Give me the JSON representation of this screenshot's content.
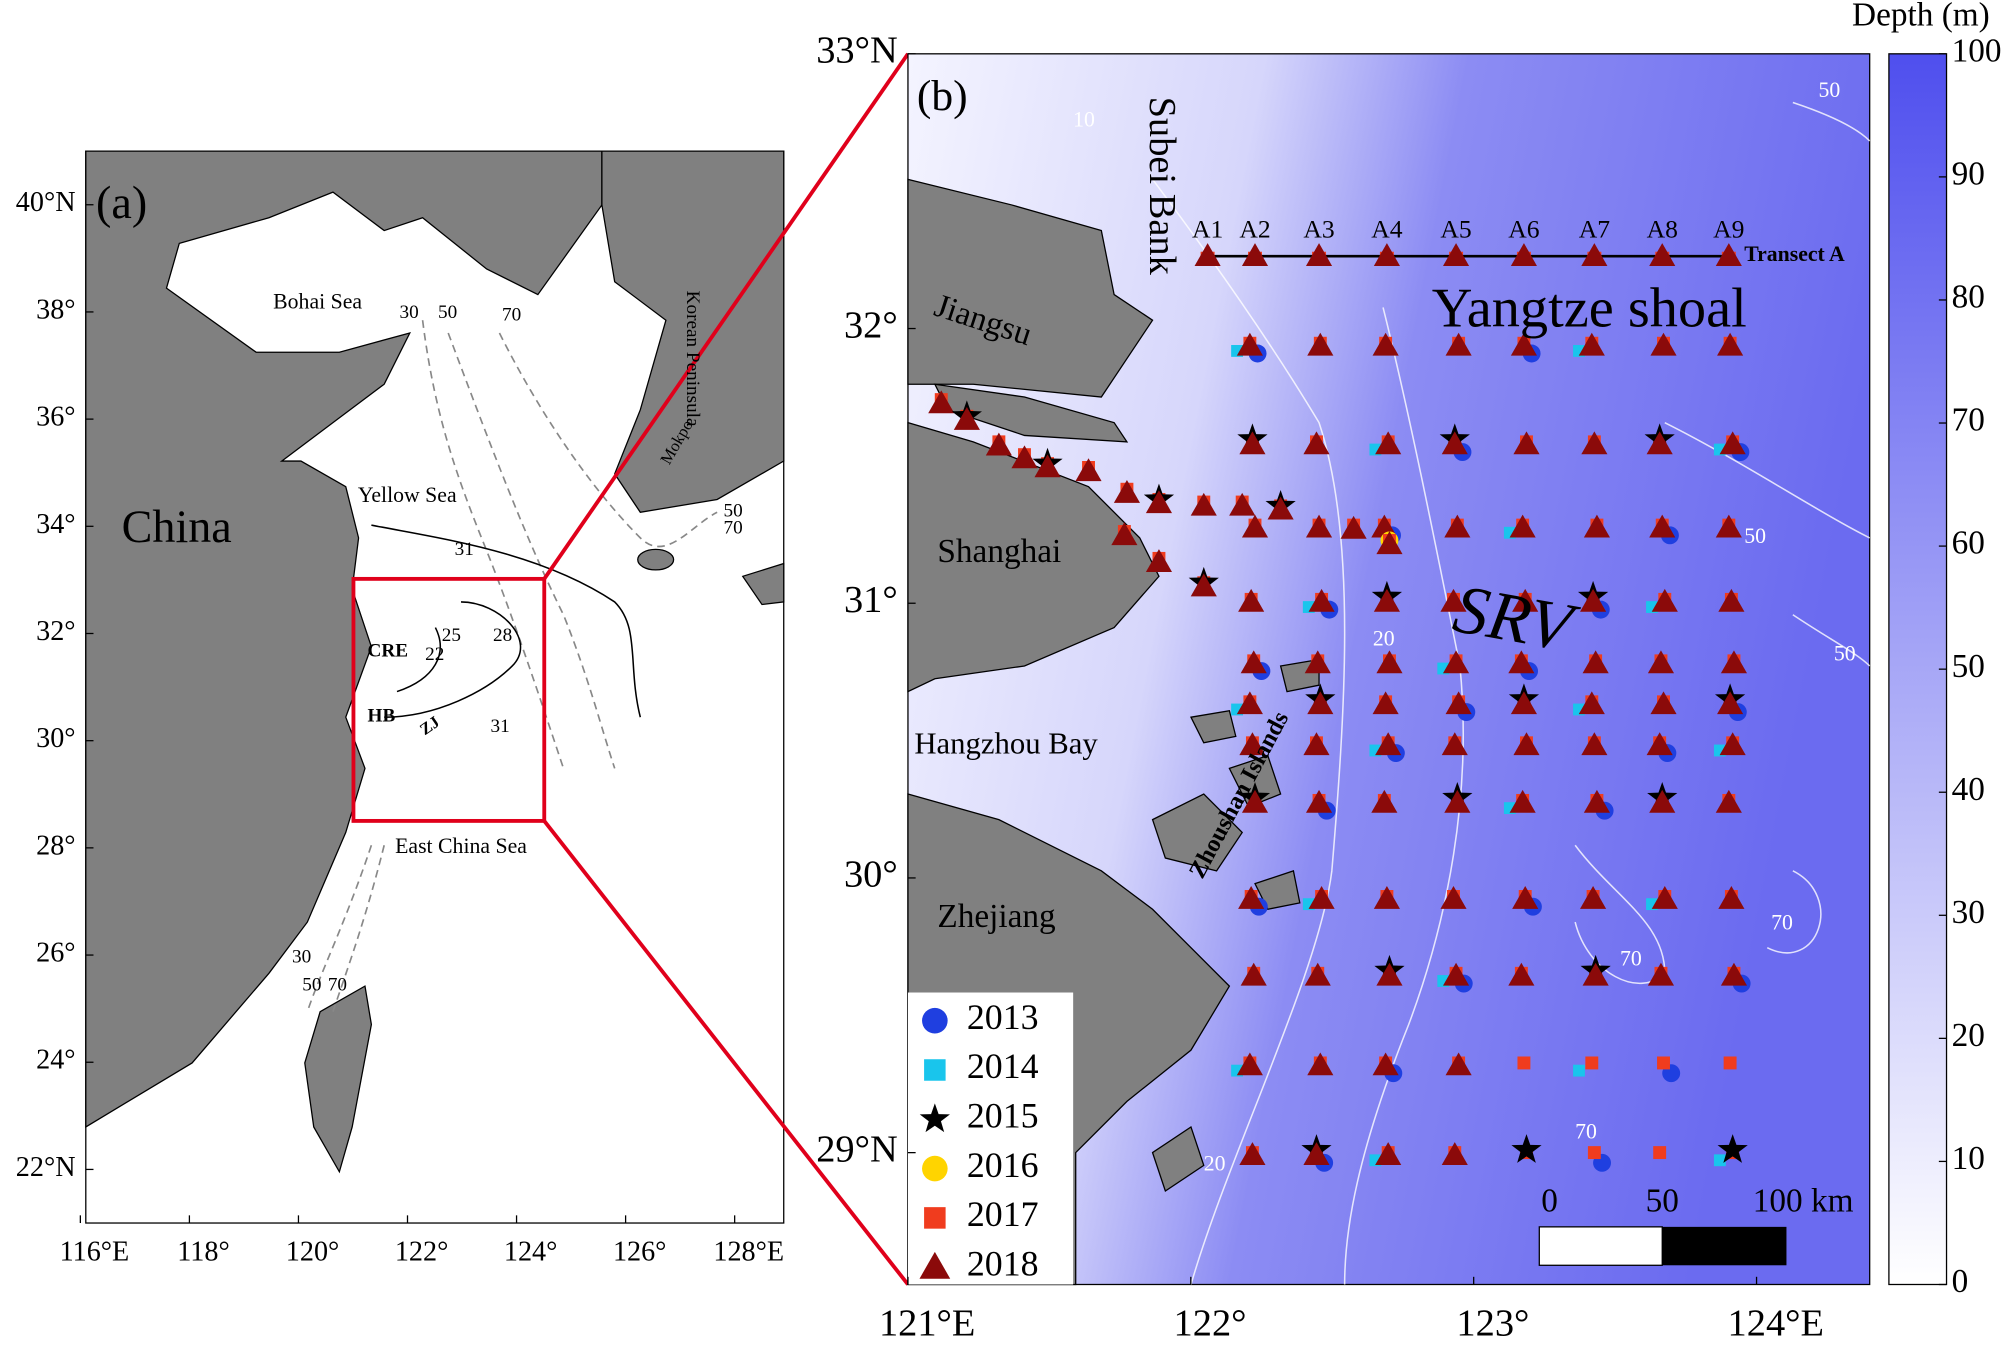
{
  "panel_a": {
    "label": "(a)",
    "xlim": [
      116.1,
      128.9
    ],
    "ylim": [
      21,
      41
    ],
    "xticks": [
      {
        "value": 116,
        "label": "116°E"
      },
      {
        "value": 118,
        "label": "118°"
      },
      {
        "value": 120,
        "label": "120°"
      },
      {
        "value": 122,
        "label": "122°"
      },
      {
        "value": 124,
        "label": "124°"
      },
      {
        "value": 126,
        "label": "126°"
      },
      {
        "value": 128,
        "label": "128°E"
      }
    ],
    "yticks": [
      {
        "value": 22,
        "label": "22°N"
      },
      {
        "value": 24,
        "label": "24°"
      },
      {
        "value": 26,
        "label": "26°"
      },
      {
        "value": 28,
        "label": "28°"
      },
      {
        "value": 30,
        "label": "30°"
      },
      {
        "value": 32,
        "label": "32°"
      },
      {
        "value": 34,
        "label": "34°"
      },
      {
        "value": 36,
        "label": "36°"
      },
      {
        "value": 38,
        "label": "38°"
      },
      {
        "value": 40,
        "label": "40°N"
      }
    ],
    "places": {
      "china": "China",
      "bohai": "Bohai Sea",
      "yellow": "Yellow Sea",
      "ecs": "East China Sea",
      "korea": "Korean Peninsula",
      "mokpo": "Mokpo",
      "cre": "CRE",
      "hb": "HB",
      "zj": "ZJ"
    },
    "contour_labels": [
      "30",
      "50",
      "70",
      "31",
      "25",
      "22",
      "28",
      "31",
      "50",
      "70",
      "30",
      "50",
      "70"
    ]
  },
  "panel_b": {
    "label": "(b)",
    "xlim": [
      121,
      124.4
    ],
    "ylim": [
      28.52,
      33
    ],
    "xticks": [
      {
        "value": 121,
        "label": "121°E"
      },
      {
        "value": 122,
        "label": "122°"
      },
      {
        "value": 123,
        "label": "123°"
      },
      {
        "value": 124,
        "label": "124°E"
      }
    ],
    "yticks": [
      {
        "value": 29,
        "label": "29°N"
      },
      {
        "value": 30,
        "label": "30°"
      },
      {
        "value": 31,
        "label": "31°"
      },
      {
        "value": 32,
        "label": "32°"
      },
      {
        "value": 33,
        "label": "33°N"
      }
    ],
    "places": {
      "subei": "Subei Bank",
      "jiangsu": "Jiangsu",
      "shanghai": "Shanghai",
      "hzbay": "Hangzhou Bay",
      "zhejiang": "Zhejiang",
      "zhoushan": "Zhoushan Islands",
      "shoal": "Yangtze shoal",
      "srv": "SRV",
      "transect": "Transect A"
    },
    "stations": [
      "A1",
      "A2",
      "A3",
      "A4",
      "A5",
      "A6",
      "A7",
      "A8",
      "A9"
    ],
    "contour_labels": [
      "50",
      "50",
      "50",
      "70",
      "70",
      "70",
      "20",
      "20",
      "10"
    ]
  },
  "colorbar": {
    "title": "Depth (m)",
    "ylim": [
      0,
      100
    ],
    "yticks": [
      0,
      10,
      20,
      30,
      40,
      50,
      60,
      70,
      80,
      90,
      100
    ],
    "colors": [
      "#ffffff",
      "#4f4fee"
    ]
  },
  "legend": {
    "series": [
      {
        "name": "2013",
        "color": "#1f3fe0",
        "marker": "circle"
      },
      {
        "name": "2014",
        "color": "#19c5ec",
        "marker": "square"
      },
      {
        "name": "2015",
        "color": "#000000",
        "marker": "star"
      },
      {
        "name": "2016",
        "color": "#ffd400",
        "marker": "circle"
      },
      {
        "name": "2017",
        "color": "#f03c1e",
        "marker": "square"
      },
      {
        "name": "2018",
        "color": "#8b0a0a",
        "marker": "triangle"
      }
    ]
  },
  "scale_bar": {
    "labels": [
      "0",
      "50",
      "100 km"
    ]
  }
}
